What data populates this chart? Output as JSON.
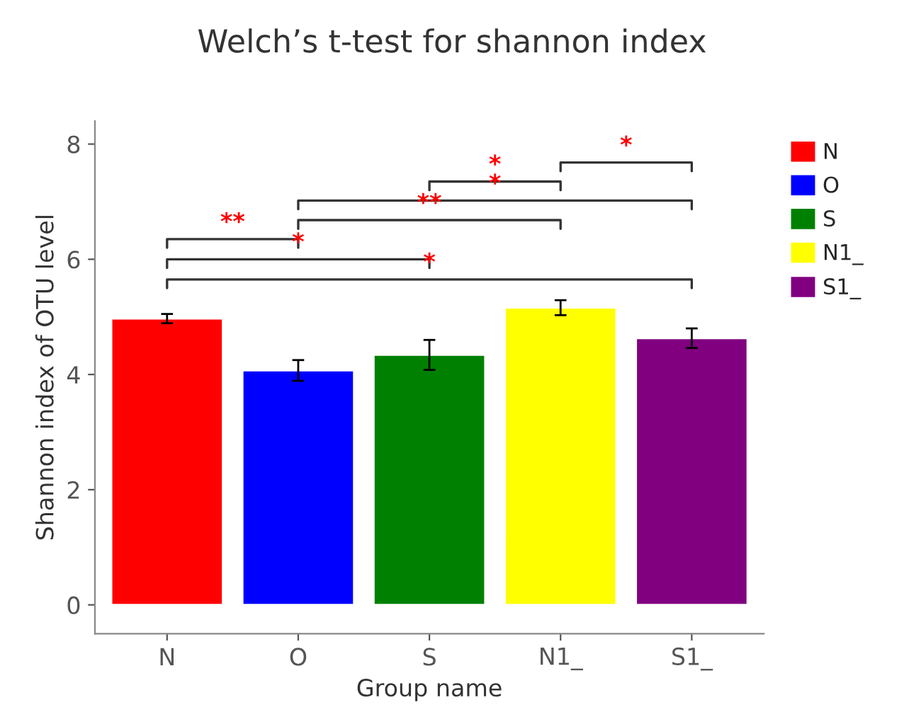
{
  "chart_data": {
    "type": "bar",
    "title": "Welch’s t-test for shannon index",
    "xlabel": "Group name",
    "ylabel": "Shannon index of OTU level",
    "categories": [
      "N",
      "O",
      "S",
      "N1_",
      "S1_"
    ],
    "series": [
      {
        "name": "N",
        "color": "#ff0000",
        "values": [
          4.97,
          null,
          null,
          null,
          null
        ],
        "errors": [
          0.08,
          null,
          null,
          null,
          null
        ]
      },
      {
        "name": "O",
        "color": "#0000ff",
        "values": [
          null,
          4.07,
          null,
          null,
          null
        ],
        "errors": [
          null,
          0.18,
          null,
          null,
          null
        ]
      },
      {
        "name": "S",
        "color": "#008000",
        "values": [
          null,
          null,
          4.34,
          null,
          null
        ],
        "errors": [
          null,
          null,
          0.26,
          null,
          null
        ]
      },
      {
        "name": "N1_",
        "color": "#ffff00",
        "values": [
          null,
          null,
          null,
          5.16,
          null
        ],
        "errors": [
          null,
          null,
          null,
          0.13,
          null
        ]
      },
      {
        "name": "S1_",
        "color": "#800080",
        "values": [
          null,
          null,
          null,
          null,
          4.63
        ],
        "errors": [
          null,
          null,
          null,
          null,
          0.17
        ]
      }
    ],
    "ylim": [
      -0.5,
      8.4
    ],
    "yticks": [
      0,
      2,
      4,
      6,
      8
    ],
    "grid": false,
    "legend": "top right",
    "annotations": [
      "**",
      "*",
      "*",
      "**",
      "*",
      "*",
      "*"
    ]
  }
}
